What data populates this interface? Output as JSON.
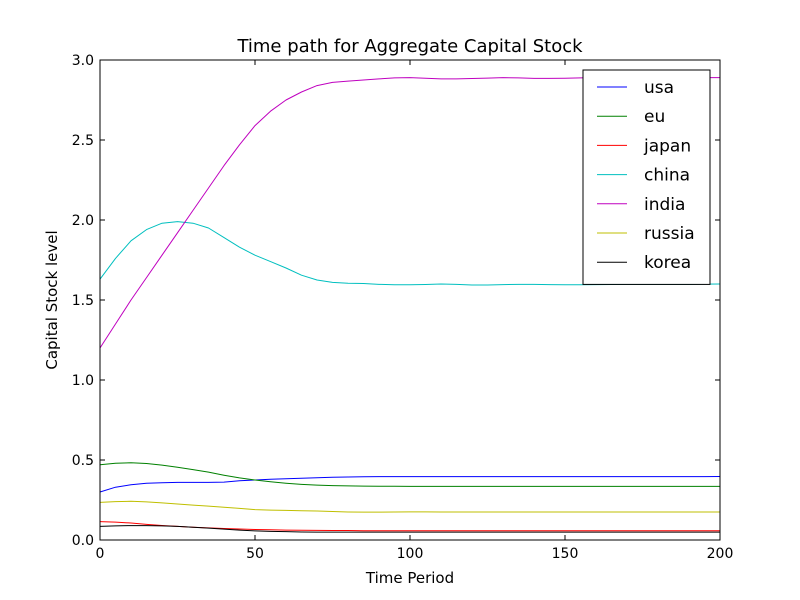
{
  "chart_data": {
    "type": "line",
    "title": "Time path for Aggregate Capital Stock",
    "xlabel": "Time Period",
    "ylabel": "Capital Stock level",
    "xlim": [
      0,
      200
    ],
    "ylim": [
      0.0,
      3.0
    ],
    "x_ticks": [
      "0",
      "50",
      "100",
      "150",
      "200"
    ],
    "y_ticks": [
      "0.0",
      "0.5",
      "1.0",
      "1.5",
      "2.0",
      "2.5",
      "3.0"
    ],
    "grid": false,
    "legend": "top-right",
    "x": [
      0,
      5,
      10,
      15,
      20,
      25,
      30,
      35,
      40,
      45,
      50,
      55,
      60,
      65,
      70,
      75,
      80,
      85,
      90,
      95,
      100,
      105,
      110,
      115,
      120,
      125,
      130,
      135,
      140,
      145,
      150,
      155,
      160,
      165,
      170,
      175,
      180,
      185,
      190,
      195,
      200
    ],
    "series": [
      {
        "name": "usa",
        "color": "#0000ff",
        "values": [
          0.3,
          0.33,
          0.345,
          0.355,
          0.358,
          0.36,
          0.36,
          0.36,
          0.362,
          0.37,
          0.375,
          0.38,
          0.383,
          0.386,
          0.389,
          0.392,
          0.394,
          0.395,
          0.396,
          0.396,
          0.396,
          0.396,
          0.396,
          0.396,
          0.396,
          0.396,
          0.396,
          0.396,
          0.396,
          0.396,
          0.396,
          0.396,
          0.396,
          0.396,
          0.396,
          0.396,
          0.396,
          0.396,
          0.396,
          0.396,
          0.397
        ]
      },
      {
        "name": "eu",
        "color": "#008000",
        "values": [
          0.47,
          0.48,
          0.483,
          0.478,
          0.468,
          0.455,
          0.44,
          0.424,
          0.405,
          0.388,
          0.375,
          0.364,
          0.355,
          0.348,
          0.343,
          0.34,
          0.338,
          0.337,
          0.336,
          0.336,
          0.335,
          0.335,
          0.335,
          0.335,
          0.335,
          0.335,
          0.335,
          0.335,
          0.335,
          0.335,
          0.335,
          0.335,
          0.335,
          0.335,
          0.335,
          0.335,
          0.335,
          0.335,
          0.335,
          0.335,
          0.335
        ]
      },
      {
        "name": "japan",
        "color": "#ff0000",
        "values": [
          0.115,
          0.112,
          0.106,
          0.098,
          0.091,
          0.085,
          0.08,
          0.076,
          0.072,
          0.069,
          0.066,
          0.064,
          0.062,
          0.061,
          0.06,
          0.059,
          0.059,
          0.058,
          0.058,
          0.058,
          0.058,
          0.058,
          0.058,
          0.058,
          0.058,
          0.058,
          0.058,
          0.058,
          0.058,
          0.058,
          0.058,
          0.058,
          0.058,
          0.058,
          0.058,
          0.058,
          0.058,
          0.058,
          0.058,
          0.058,
          0.058
        ]
      },
      {
        "name": "china",
        "color": "#00bfbf",
        "values": [
          1.63,
          1.76,
          1.87,
          1.94,
          1.98,
          1.99,
          1.98,
          1.95,
          1.89,
          1.83,
          1.78,
          1.74,
          1.7,
          1.655,
          1.625,
          1.61,
          1.605,
          1.603,
          1.598,
          1.595,
          1.595,
          1.597,
          1.6,
          1.598,
          1.594,
          1.594,
          1.596,
          1.598,
          1.598,
          1.596,
          1.595,
          1.595,
          1.596,
          1.597,
          1.598,
          1.598,
          1.598,
          1.598,
          1.598,
          1.599,
          1.6
        ]
      },
      {
        "name": "india",
        "color": "#bf00bf",
        "values": [
          1.2,
          1.35,
          1.5,
          1.64,
          1.78,
          1.92,
          2.06,
          2.2,
          2.34,
          2.47,
          2.59,
          2.68,
          2.75,
          2.8,
          2.84,
          2.86,
          2.868,
          2.875,
          2.882,
          2.888,
          2.89,
          2.886,
          2.882,
          2.882,
          2.884,
          2.887,
          2.89,
          2.888,
          2.885,
          2.885,
          2.886,
          2.888,
          2.89,
          2.89,
          2.89,
          2.89,
          2.89,
          2.89,
          2.89,
          2.89,
          2.89
        ]
      },
      {
        "name": "russia",
        "color": "#bfbf00",
        "values": [
          0.235,
          0.24,
          0.242,
          0.238,
          0.232,
          0.225,
          0.218,
          0.212,
          0.205,
          0.198,
          0.19,
          0.187,
          0.185,
          0.183,
          0.181,
          0.178,
          0.175,
          0.174,
          0.174,
          0.175,
          0.176,
          0.176,
          0.175,
          0.175,
          0.175,
          0.175,
          0.175,
          0.175,
          0.175,
          0.175,
          0.175,
          0.175,
          0.175,
          0.175,
          0.175,
          0.175,
          0.175,
          0.175,
          0.175,
          0.175,
          0.175
        ]
      },
      {
        "name": "korea",
        "color": "#000000",
        "values": [
          0.085,
          0.088,
          0.09,
          0.09,
          0.088,
          0.085,
          0.08,
          0.074,
          0.068,
          0.062,
          0.057,
          0.054,
          0.052,
          0.05,
          0.049,
          0.049,
          0.049,
          0.049,
          0.049,
          0.049,
          0.049,
          0.049,
          0.049,
          0.049,
          0.049,
          0.049,
          0.049,
          0.049,
          0.049,
          0.049,
          0.049,
          0.049,
          0.049,
          0.049,
          0.049,
          0.049,
          0.049,
          0.049,
          0.049,
          0.049,
          0.049
        ]
      }
    ]
  }
}
